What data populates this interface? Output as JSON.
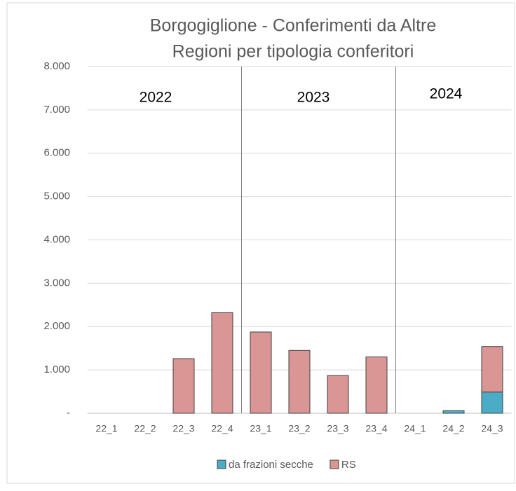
{
  "chart_data": {
    "type": "stacked_bar",
    "title": "Borgogiglione - Conferimenti da Altre",
    "subtitle": "Regioni per tipologia conferitori",
    "annotations": [
      "2022",
      "2023",
      "2024"
    ],
    "categories": [
      "22_1",
      "22_2",
      "22_3",
      "22_4",
      "23_1",
      "23_2",
      "23_3",
      "23_4",
      "24_1",
      "24_2",
      "24_3"
    ],
    "series": [
      {
        "name": "da frazioni secche",
        "color": "#4bacc6",
        "values": [
          0,
          0,
          0,
          0,
          0,
          0,
          0,
          0,
          0,
          60,
          490
        ]
      },
      {
        "name": "RS",
        "color": "#d99694",
        "values": [
          0,
          0,
          1260,
          2320,
          1875,
          1450,
          870,
          1300,
          0,
          0,
          1050
        ]
      }
    ],
    "ylim": [
      0,
      8000
    ],
    "yticks": [
      {
        "value": 0,
        "label": "-"
      },
      {
        "value": 1000,
        "label": "1.000"
      },
      {
        "value": 2000,
        "label": "2.000"
      },
      {
        "value": 3000,
        "label": "3.000"
      },
      {
        "value": 4000,
        "label": "4.000"
      },
      {
        "value": 5000,
        "label": "5.000"
      },
      {
        "value": 6000,
        "label": "6.000"
      },
      {
        "value": 7000,
        "label": "7.000"
      },
      {
        "value": 8000,
        "label": "8.000"
      }
    ],
    "grid": true,
    "legend": "bottom"
  }
}
